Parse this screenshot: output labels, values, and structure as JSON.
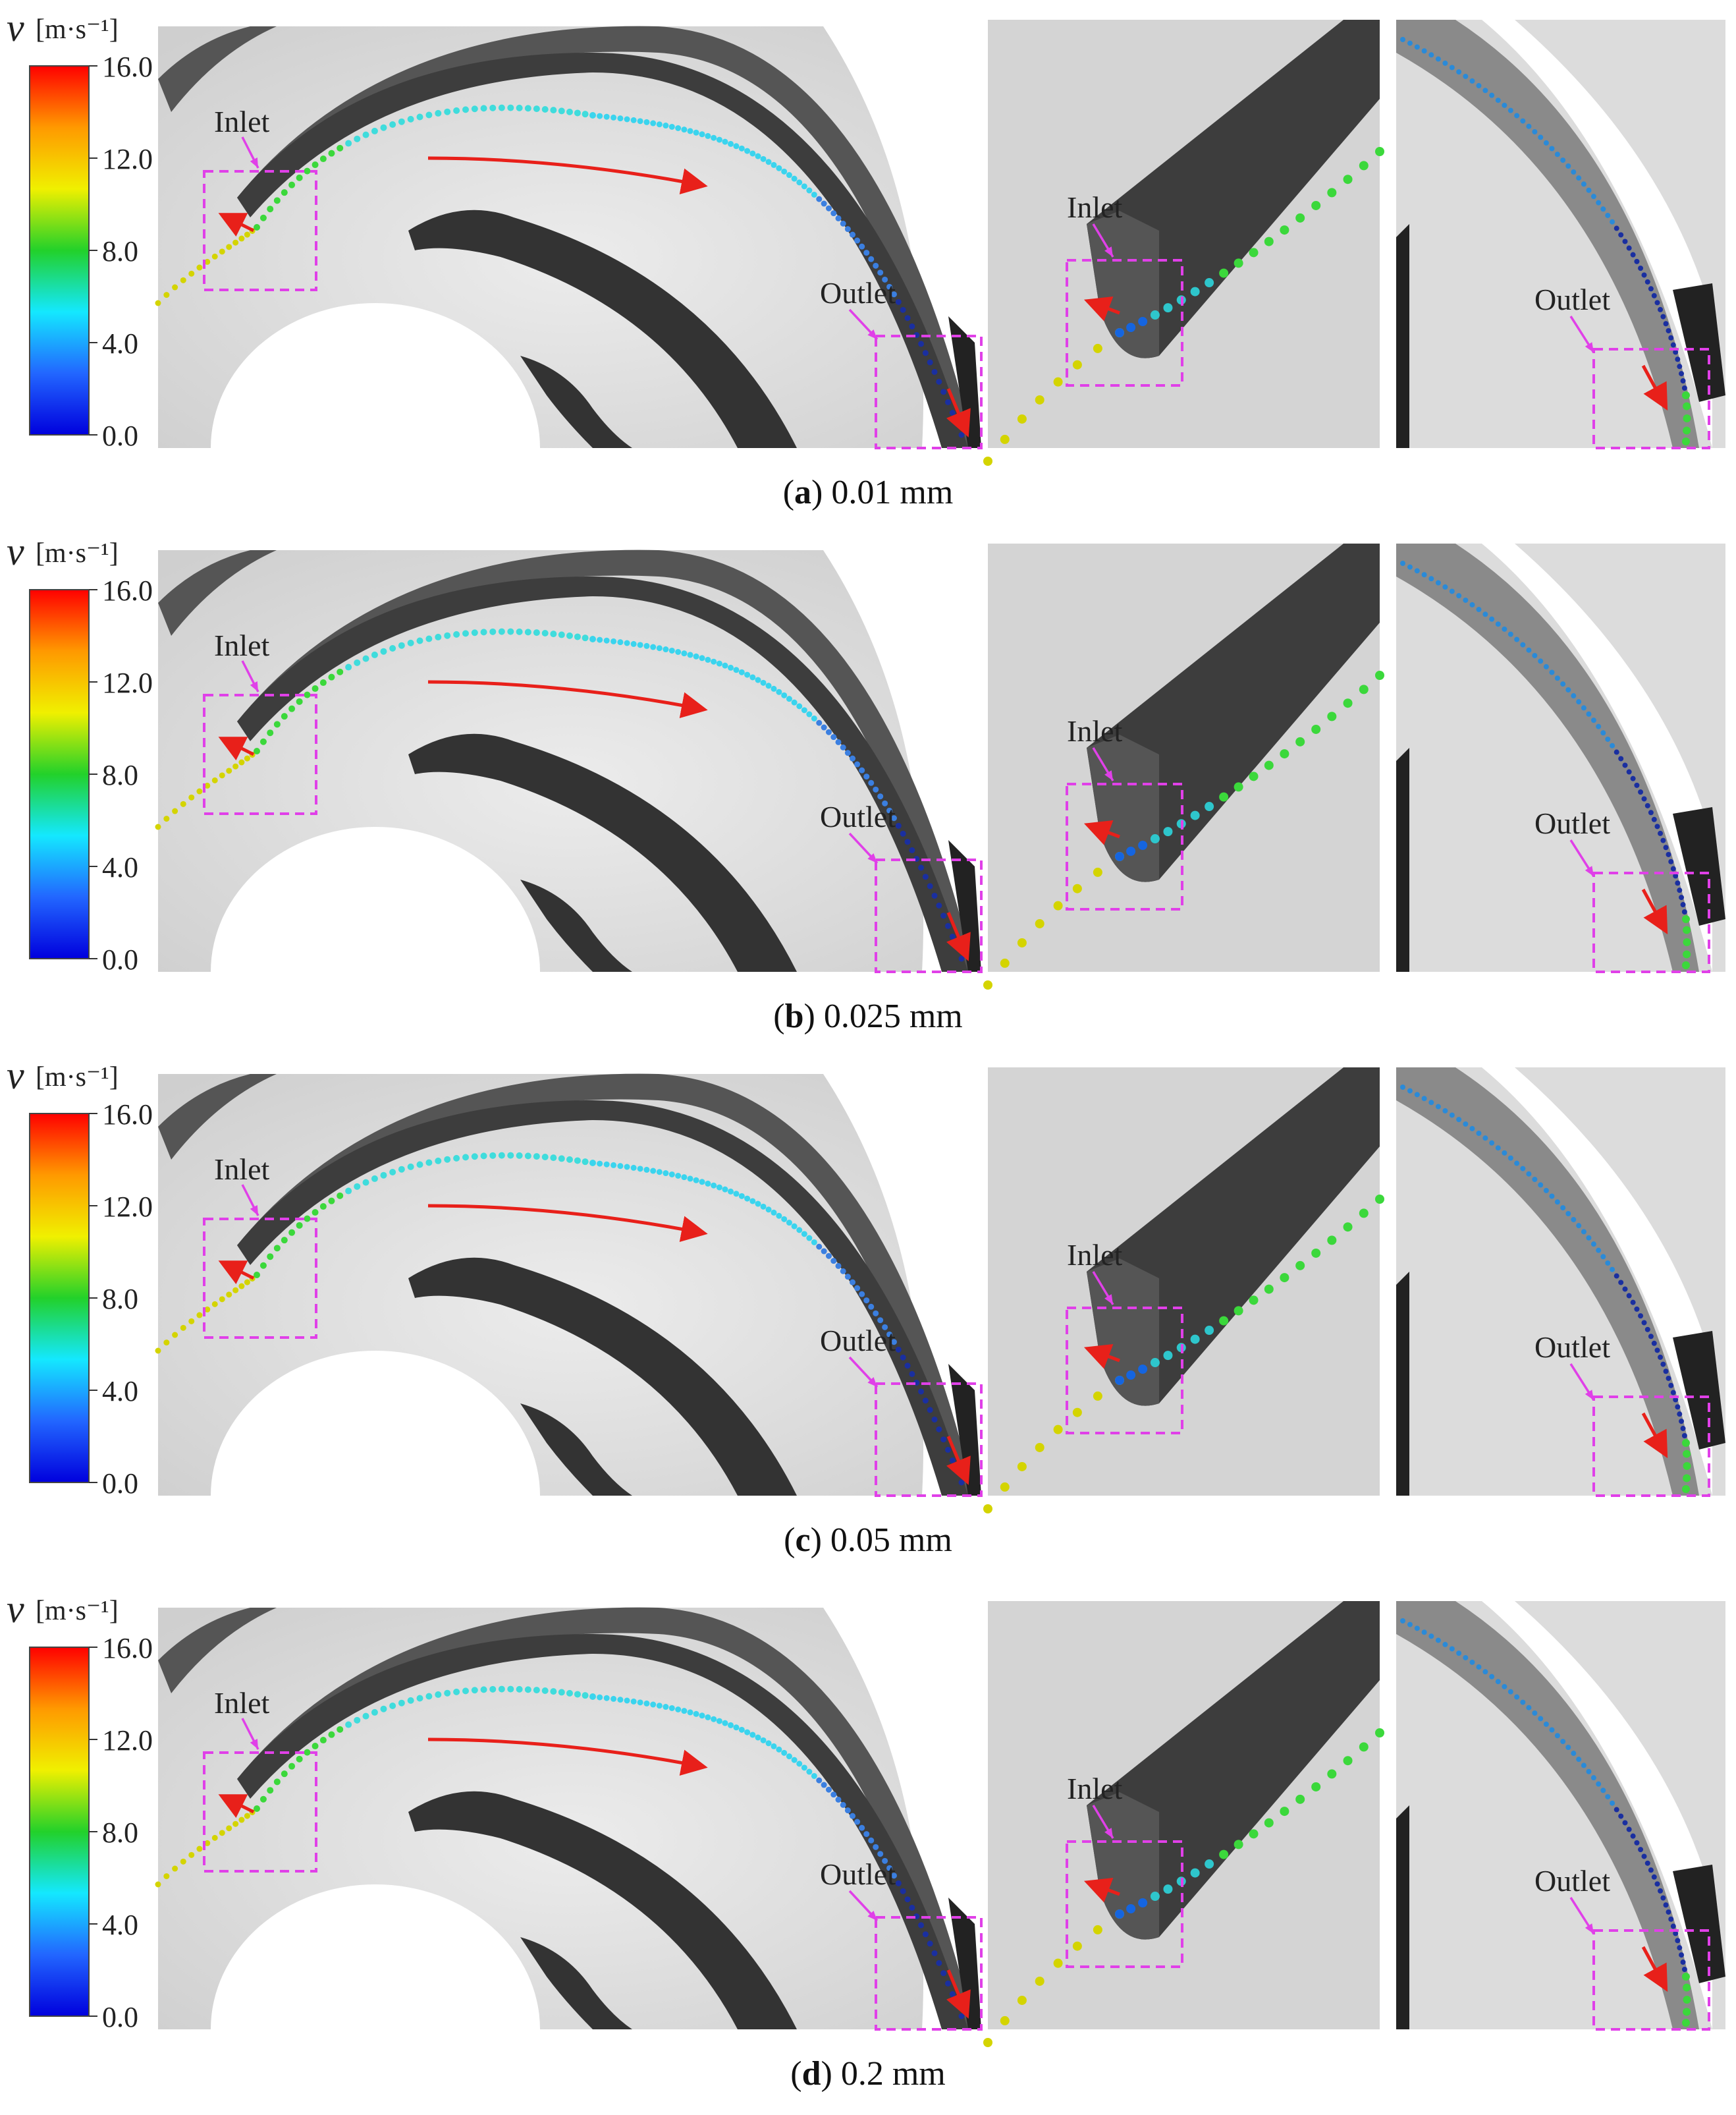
{
  "colorbar": {
    "symbol": "v",
    "unit": "[m·s⁻¹]",
    "ticks": [
      "16.0",
      "12.0",
      "8.0",
      "4.0",
      "0.0"
    ],
    "range": [
      0.0,
      16.0
    ],
    "colors": [
      "#ff0000",
      "#ff9900",
      "#f0f000",
      "#22d12a",
      "#14e8ff",
      "#2266ff",
      "#0000dd"
    ]
  },
  "labels": {
    "inlet": "Inlet",
    "outlet": "Outlet"
  },
  "colors": {
    "highlight_box": "#e040e8",
    "flow_arrow": "#e8201a",
    "blade": "#3a3a3a",
    "background_surface": "#d9d9d9"
  },
  "panels": [
    {
      "letter": "a",
      "value": "0.01 mm"
    },
    {
      "letter": "b",
      "value": "0.025 mm"
    },
    {
      "letter": "c",
      "value": "0.05 mm"
    },
    {
      "letter": "d",
      "value": "0.2 mm"
    }
  ]
}
